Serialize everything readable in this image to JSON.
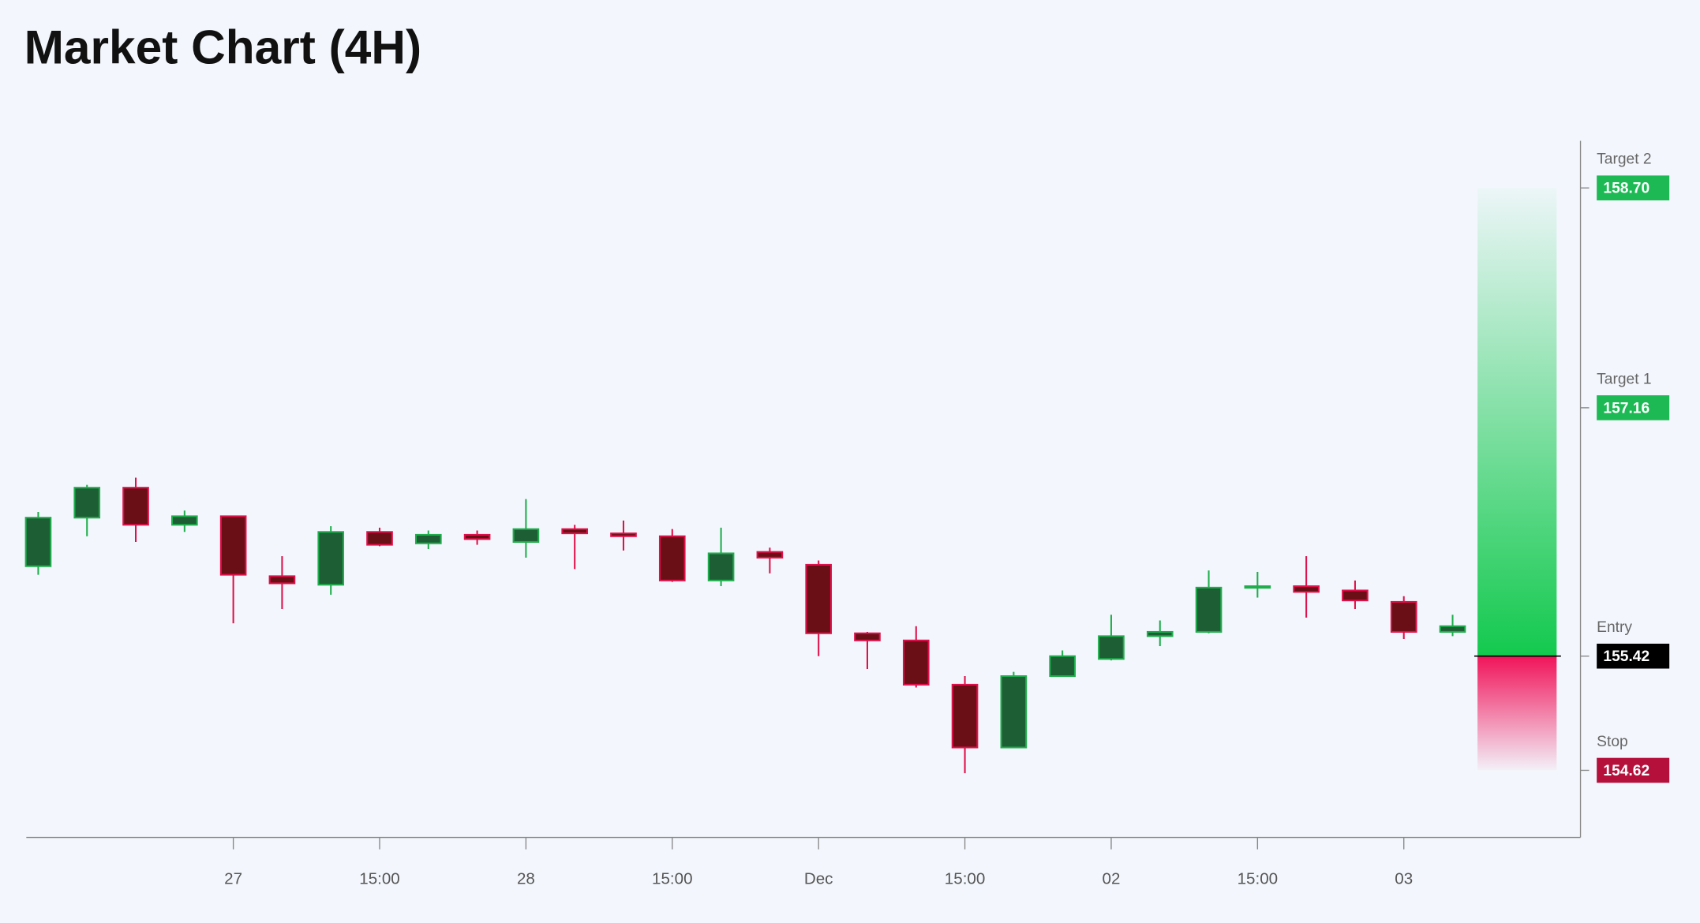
{
  "chart_data": {
    "type": "candlestick",
    "title": "Market Chart (4H)",
    "categories": [
      null,
      null,
      null,
      null,
      "27",
      null,
      null,
      "15:00",
      null,
      null,
      "28",
      null,
      null,
      "15:00",
      null,
      null,
      "Dec",
      null,
      null,
      "15:00",
      null,
      null,
      "02",
      null,
      null,
      "15:00",
      null,
      null,
      "03",
      null
    ],
    "open": [
      156.05,
      156.39,
      156.6,
      156.34,
      156.4,
      155.98,
      155.92,
      156.29,
      156.21,
      156.27,
      156.22,
      156.31,
      156.28,
      156.26,
      155.95,
      156.15,
      156.06,
      155.58,
      155.53,
      155.22,
      154.78,
      155.28,
      155.4,
      155.56,
      155.59,
      155.9,
      155.91,
      155.88,
      155.8,
      155.59
    ],
    "high": [
      156.43,
      156.62,
      156.67,
      156.44,
      156.4,
      156.12,
      156.33,
      156.32,
      156.3,
      156.3,
      156.52,
      156.34,
      156.37,
      156.31,
      156.32,
      156.18,
      156.09,
      155.59,
      155.63,
      155.28,
      155.31,
      155.46,
      155.71,
      155.67,
      156.02,
      156.01,
      156.12,
      155.95,
      155.84,
      155.71
    ],
    "low": [
      155.99,
      156.26,
      156.22,
      156.29,
      155.65,
      155.75,
      155.85,
      156.19,
      156.17,
      156.2,
      156.11,
      156.03,
      156.16,
      155.94,
      155.91,
      156.0,
      155.42,
      155.33,
      155.2,
      154.6,
      154.78,
      155.28,
      155.39,
      155.49,
      155.58,
      155.83,
      155.69,
      155.75,
      155.54,
      155.56
    ],
    "close": [
      156.39,
      156.6,
      156.34,
      156.4,
      155.99,
      155.93,
      156.29,
      156.2,
      156.27,
      156.24,
      156.31,
      156.28,
      156.26,
      155.95,
      156.14,
      156.11,
      155.58,
      155.53,
      155.22,
      154.78,
      155.28,
      155.42,
      155.56,
      155.59,
      155.9,
      155.91,
      155.87,
      155.81,
      155.59,
      155.63
    ],
    "up_color": "#1fae4c",
    "up_fill": "#1e5e34",
    "down_color": "#e0104a",
    "down_fill": "#6b0f17",
    "ylim": [
      154.15,
      159.03
    ],
    "levels": {
      "names": [
        "Target 2",
        "Target 1",
        "Entry",
        "Stop"
      ],
      "values": [
        158.7,
        157.16,
        155.42,
        154.62
      ],
      "value_labels": [
        "158.70",
        "157.16",
        "155.42",
        "154.62"
      ],
      "colors": [
        "#1db954",
        "#1db954",
        "#000000",
        "#b5103c"
      ]
    }
  }
}
